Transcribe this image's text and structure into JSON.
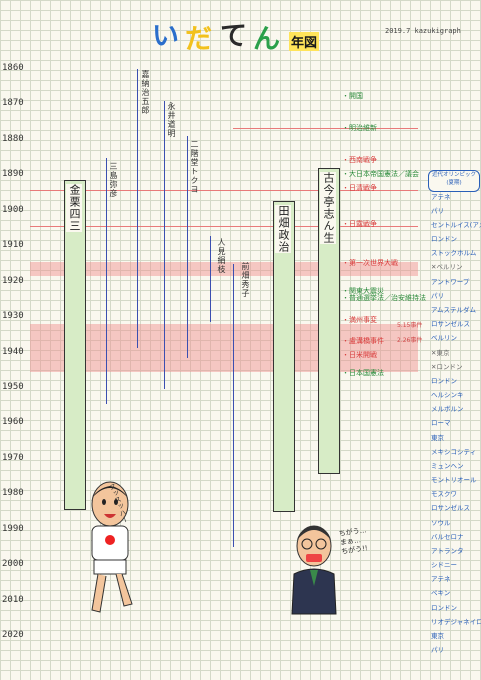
{
  "header": {
    "title_chars": [
      {
        "ch": "い",
        "color": "#2a6ecb"
      },
      {
        "ch": "だ",
        "color": "#f2c11d"
      },
      {
        "ch": "て",
        "color": "#2a2a2a"
      },
      {
        "ch": "ん",
        "color": "#2aa04a"
      }
    ],
    "title_badge": "年図",
    "date": "2019.7 kazukigraph"
  },
  "axis": {
    "years": [
      1860,
      1870,
      1880,
      1890,
      1900,
      1910,
      1920,
      1930,
      1940,
      1950,
      1960,
      1970,
      1980,
      1990,
      2000,
      2010,
      2020
    ]
  },
  "people": {
    "kanakuri": {
      "name": "金栗四三",
      "birth": 1891,
      "death": 1983
    },
    "tabata": {
      "name": "田畑政治",
      "birth": 1898,
      "death": 1984
    },
    "kokontei": {
      "name": "古今亭志ん生",
      "birth": 1890,
      "death": 1973
    },
    "mishima": {
      "name": "三島弥彦",
      "birth": 1886,
      "death": 1954
    },
    "kano": {
      "name": "嘉納治五郎",
      "birth": 1860,
      "death": 1938
    },
    "nagai": {
      "name": "永井道明",
      "birth": 1869,
      "death": 1950
    },
    "nikaido": {
      "name": "二階堂トクヨ",
      "birth": 1880,
      "death": 1941
    },
    "hitomi": {
      "name": "人見絹枝",
      "birth": 1907,
      "death": 1931
    },
    "maehata": {
      "name": "前畑秀子",
      "birth": 1914,
      "death": 1995
    }
  },
  "events": [
    {
      "year": 1868,
      "text": "開国"
    },
    {
      "year": 1877,
      "text": "明治維新"
    },
    {
      "year": 1886,
      "text": "西南戦争"
    },
    {
      "year": 1890,
      "text": "大日本帝国憲法／議会"
    },
    {
      "year": 1894,
      "text": "日清戦争"
    },
    {
      "year": 1904,
      "text": "日露戦争"
    },
    {
      "year": 1915,
      "text": "第一次世界大戦"
    },
    {
      "year": 1923,
      "text": "関東大震災"
    },
    {
      "year": 1925,
      "text": "普通選挙法／治安維持法"
    },
    {
      "year": 1931,
      "text": "満州事変"
    },
    {
      "year": 1937,
      "text": "盧溝橋事件"
    },
    {
      "year": 1941,
      "text": "日米開戦"
    },
    {
      "year": 1946,
      "text": "日本国憲法"
    }
  ],
  "asides": [
    "5.15事件",
    "2.26事件"
  ],
  "olympics_header": "近代オリンピック\n(夏期)",
  "olympics": [
    {
      "year": 1896,
      "text": "アテネ"
    },
    {
      "year": 1900,
      "text": "パリ"
    },
    {
      "year": 1904,
      "text": "セントルイス\n(アメリカ)"
    },
    {
      "year": 1908,
      "text": "ロンドン"
    },
    {
      "year": 1912,
      "text": "ストックホルム"
    },
    {
      "year": 1916,
      "text": "✕ベルリン"
    },
    {
      "year": 1920,
      "text": "アントワープ"
    },
    {
      "year": 1924,
      "text": "パリ"
    },
    {
      "year": 1928,
      "text": "アムステルダム"
    },
    {
      "year": 1932,
      "text": "ロサンゼルス"
    },
    {
      "year": 1936,
      "text": "ベルリン"
    },
    {
      "year": 1940,
      "text": "✕東京"
    },
    {
      "year": 1944,
      "text": "✕ロンドン"
    },
    {
      "year": 1948,
      "text": "ロンドン"
    },
    {
      "year": 1952,
      "text": "ヘルシンキ"
    },
    {
      "year": 1956,
      "text": "メルボルン"
    },
    {
      "year": 1960,
      "text": "ローマ"
    },
    {
      "year": 1964,
      "text": "東京"
    },
    {
      "year": 1968,
      "text": "メキシコシティ"
    },
    {
      "year": 1972,
      "text": "ミュンヘン"
    },
    {
      "year": 1976,
      "text": "モントリオール"
    },
    {
      "year": 1980,
      "text": "モスクワ"
    },
    {
      "year": 1984,
      "text": "ロサンゼルス"
    },
    {
      "year": 1988,
      "text": "ソウル"
    },
    {
      "year": 1992,
      "text": "バルセロナ"
    },
    {
      "year": 1996,
      "text": "アトランタ"
    },
    {
      "year": 2000,
      "text": "シドニー"
    },
    {
      "year": 2004,
      "text": "アテネ"
    },
    {
      "year": 2008,
      "text": "ペキン"
    },
    {
      "year": 2012,
      "text": "ロンドン"
    },
    {
      "year": 2016,
      "text": "リオデジャネイロ"
    },
    {
      "year": 2020,
      "text": "東京"
    },
    {
      "year": 2024,
      "text": "パリ"
    }
  ],
  "speech": {
    "runner": "スッスッハー",
    "man": "ちがう…\nまぁ…\nちがう!!"
  },
  "colors": {
    "bar_fill": "#d7ecc6",
    "event_green": "#2a8a3a",
    "event_red": "#d83a3a",
    "olympic_blue": "#2a5fb8",
    "band": "#f08c8c"
  }
}
